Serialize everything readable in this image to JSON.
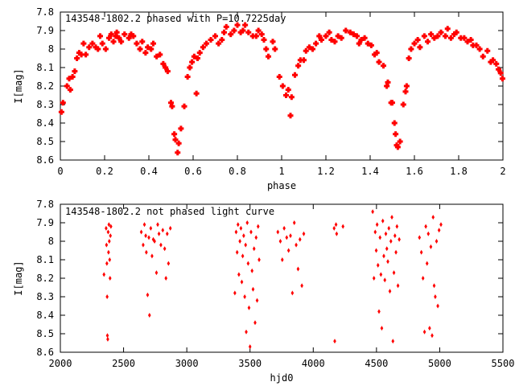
{
  "colors": {
    "points": "#ff0000",
    "axes": "#000000",
    "background": "#ffffff"
  },
  "chart_data": [
    {
      "type": "scatter",
      "title": "143548-1802.2 phased with P=10.7225day",
      "xlabel": "phase",
      "ylabel": "I[mag]",
      "xlim": [
        0,
        2
      ],
      "ylim": [
        7.8,
        8.6
      ],
      "y_inverted": true,
      "grid": false,
      "xticks": [
        0,
        0.2,
        0.4,
        0.6,
        0.8,
        1,
        1.2,
        1.4,
        1.6,
        1.8,
        2
      ],
      "xtick_labels": [
        "0",
        "0.2",
        "0.4",
        "0.6",
        "0.8",
        "1",
        "1.2",
        "1.4",
        "1.6",
        "1.8",
        "2"
      ],
      "yticks": [
        7.8,
        7.9,
        8,
        8.1,
        8.2,
        8.3,
        8.4,
        8.5,
        8.6
      ],
      "ytick_labels": [
        "7.8",
        "7.9",
        "8",
        "8.1",
        "8.2",
        "8.3",
        "8.4",
        "8.5",
        "8.6"
      ],
      "points": [
        [
          0.005,
          8.34
        ],
        [
          0.012,
          8.29
        ],
        [
          0.03,
          8.2
        ],
        [
          0.04,
          8.16
        ],
        [
          0.045,
          8.22
        ],
        [
          0.055,
          8.15
        ],
        [
          0.065,
          8.12
        ],
        [
          0.075,
          8.05
        ],
        [
          0.085,
          8.02
        ],
        [
          0.095,
          8.03
        ],
        [
          0.105,
          7.97
        ],
        [
          0.115,
          8.03
        ],
        [
          0.13,
          7.99
        ],
        [
          0.145,
          7.97
        ],
        [
          0.16,
          7.99
        ],
        [
          0.17,
          8.0
        ],
        [
          0.18,
          7.93
        ],
        [
          0.19,
          7.97
        ],
        [
          0.205,
          8.0
        ],
        [
          0.22,
          7.94
        ],
        [
          0.23,
          7.92
        ],
        [
          0.24,
          7.96
        ],
        [
          0.25,
          7.93
        ],
        [
          0.255,
          7.91
        ],
        [
          0.265,
          7.94
        ],
        [
          0.275,
          7.96
        ],
        [
          0.29,
          7.92
        ],
        [
          0.31,
          7.94
        ],
        [
          0.32,
          7.92
        ],
        [
          0.33,
          7.93
        ],
        [
          0.345,
          7.97
        ],
        [
          0.36,
          8.0
        ],
        [
          0.37,
          7.96
        ],
        [
          0.385,
          8.02
        ],
        [
          0.395,
          7.99
        ],
        [
          0.41,
          8.0
        ],
        [
          0.42,
          7.97
        ],
        [
          0.435,
          8.04
        ],
        [
          0.45,
          8.03
        ],
        [
          0.465,
          8.08
        ],
        [
          0.475,
          8.1
        ],
        [
          0.485,
          8.12
        ],
        [
          0.5,
          8.29
        ],
        [
          0.505,
          8.31
        ],
        [
          0.515,
          8.46
        ],
        [
          0.52,
          8.49
        ],
        [
          0.53,
          8.56
        ],
        [
          0.535,
          8.51
        ],
        [
          0.545,
          8.43
        ],
        [
          0.56,
          8.31
        ],
        [
          0.575,
          8.15
        ],
        [
          0.585,
          8.1
        ],
        [
          0.595,
          8.07
        ],
        [
          0.605,
          8.04
        ],
        [
          0.615,
          8.24
        ],
        [
          0.62,
          8.05
        ],
        [
          0.63,
          8.02
        ],
        [
          0.645,
          7.99
        ],
        [
          0.66,
          7.97
        ],
        [
          0.68,
          7.95
        ],
        [
          0.7,
          7.93
        ],
        [
          0.715,
          7.97
        ],
        [
          0.73,
          7.95
        ],
        [
          0.74,
          7.91
        ],
        [
          0.75,
          7.88
        ],
        [
          0.77,
          7.92
        ],
        [
          0.785,
          7.9
        ],
        [
          0.8,
          7.87
        ],
        [
          0.815,
          7.91
        ],
        [
          0.825,
          7.9
        ],
        [
          0.835,
          7.87
        ],
        [
          0.85,
          7.91
        ],
        [
          0.87,
          7.93
        ],
        [
          0.885,
          7.93
        ],
        [
          0.895,
          7.9
        ],
        [
          0.91,
          7.92
        ],
        [
          0.92,
          7.95
        ],
        [
          0.93,
          8.0
        ],
        [
          0.94,
          8.04
        ],
        [
          0.96,
          7.96
        ],
        [
          0.97,
          8.0
        ],
        [
          0.99,
          8.15
        ],
        [
          1.005,
          8.2
        ],
        [
          1.02,
          8.25
        ],
        [
          1.03,
          8.22
        ],
        [
          1.04,
          8.36
        ],
        [
          1.045,
          8.26
        ],
        [
          1.06,
          8.14
        ],
        [
          1.075,
          8.09
        ],
        [
          1.085,
          8.06
        ],
        [
          1.1,
          8.06
        ],
        [
          1.11,
          8.01
        ],
        [
          1.125,
          7.99
        ],
        [
          1.14,
          8.0
        ],
        [
          1.155,
          7.97
        ],
        [
          1.17,
          7.93
        ],
        [
          1.18,
          7.95
        ],
        [
          1.2,
          7.93
        ],
        [
          1.215,
          7.91
        ],
        [
          1.225,
          7.95
        ],
        [
          1.24,
          7.96
        ],
        [
          1.255,
          7.93
        ],
        [
          1.27,
          7.94
        ],
        [
          1.29,
          7.9
        ],
        [
          1.31,
          7.91
        ],
        [
          1.325,
          7.92
        ],
        [
          1.34,
          7.93
        ],
        [
          1.35,
          7.97
        ],
        [
          1.36,
          7.95
        ],
        [
          1.375,
          7.94
        ],
        [
          1.39,
          7.97
        ],
        [
          1.405,
          7.98
        ],
        [
          1.42,
          8.03
        ],
        [
          1.43,
          8.02
        ],
        [
          1.44,
          8.07
        ],
        [
          1.46,
          8.09
        ],
        [
          1.475,
          8.2
        ],
        [
          1.48,
          8.18
        ],
        [
          1.495,
          8.29
        ],
        [
          1.5,
          8.29
        ],
        [
          1.51,
          8.4
        ],
        [
          1.515,
          8.46
        ],
        [
          1.52,
          8.52
        ],
        [
          1.525,
          8.53
        ],
        [
          1.535,
          8.5
        ],
        [
          1.55,
          8.3
        ],
        [
          1.56,
          8.23
        ],
        [
          1.565,
          8.2
        ],
        [
          1.575,
          8.05
        ],
        [
          1.585,
          8.0
        ],
        [
          1.6,
          7.97
        ],
        [
          1.615,
          7.95
        ],
        [
          1.625,
          7.99
        ],
        [
          1.645,
          7.93
        ],
        [
          1.66,
          7.96
        ],
        [
          1.675,
          7.92
        ],
        [
          1.69,
          7.94
        ],
        [
          1.705,
          7.93
        ],
        [
          1.72,
          7.91
        ],
        [
          1.74,
          7.93
        ],
        [
          1.75,
          7.89
        ],
        [
          1.765,
          7.94
        ],
        [
          1.78,
          7.92
        ],
        [
          1.79,
          7.91
        ],
        [
          1.81,
          7.94
        ],
        [
          1.825,
          7.94
        ],
        [
          1.84,
          7.96
        ],
        [
          1.855,
          7.95
        ],
        [
          1.865,
          7.98
        ],
        [
          1.88,
          7.98
        ],
        [
          1.895,
          8.0
        ],
        [
          1.91,
          8.04
        ],
        [
          1.93,
          8.01
        ],
        [
          1.945,
          8.07
        ],
        [
          1.955,
          8.06
        ],
        [
          1.97,
          8.08
        ],
        [
          1.98,
          8.11
        ],
        [
          1.99,
          8.13
        ],
        [
          1.998,
          8.16
        ]
      ]
    },
    {
      "type": "scatter",
      "title": "143548-1802.2 not phased light curve",
      "xlabel": "hjd0",
      "ylabel": "I[mag]",
      "xlim": [
        2000,
        5500
      ],
      "ylim": [
        7.8,
        8.6
      ],
      "y_inverted": true,
      "grid": false,
      "xticks": [
        2000,
        2500,
        3000,
        3500,
        4000,
        4500,
        5000,
        5500
      ],
      "xtick_labels": [
        "2000",
        "2500",
        "3000",
        "3500",
        "4000",
        "4500",
        "5000",
        "5500"
      ],
      "yticks": [
        7.8,
        7.9,
        8,
        8.1,
        8.2,
        8.3,
        8.4,
        8.5,
        8.6
      ],
      "ytick_labels": [
        "7.8",
        "7.9",
        "8",
        "8.1",
        "8.2",
        "8.3",
        "8.4",
        "8.5",
        "8.6"
      ],
      "points": [
        [
          2345,
          8.18
        ],
        [
          2362,
          7.93
        ],
        [
          2365,
          8.02
        ],
        [
          2368,
          8.12
        ],
        [
          2370,
          8.3
        ],
        [
          2372,
          8.51
        ],
        [
          2375,
          8.53
        ],
        [
          2378,
          7.95
        ],
        [
          2381,
          8.06
        ],
        [
          2384,
          7.91
        ],
        [
          2387,
          8.0
        ],
        [
          2390,
          8.1
        ],
        [
          2393,
          8.2
        ],
        [
          2396,
          7.97
        ],
        [
          2400,
          7.92
        ],
        [
          2640,
          7.95
        ],
        [
          2655,
          8.02
        ],
        [
          2665,
          7.91
        ],
        [
          2675,
          7.97
        ],
        [
          2680,
          8.06
        ],
        [
          2690,
          8.29
        ],
        [
          2700,
          7.98
        ],
        [
          2705,
          8.4
        ],
        [
          2715,
          7.93
        ],
        [
          2725,
          8.08
        ],
        [
          2735,
          7.99
        ],
        [
          2745,
          8.0
        ],
        [
          2760,
          8.17
        ],
        [
          2770,
          7.91
        ],
        [
          2780,
          7.96
        ],
        [
          2795,
          8.02
        ],
        [
          2810,
          7.94
        ],
        [
          2825,
          8.04
        ],
        [
          2835,
          8.2
        ],
        [
          2845,
          7.96
        ],
        [
          2855,
          8.12
        ],
        [
          2870,
          7.93
        ],
        [
          3380,
          8.28
        ],
        [
          3390,
          7.95
        ],
        [
          3398,
          8.06
        ],
        [
          3405,
          7.91
        ],
        [
          3412,
          8.18
        ],
        [
          3420,
          8.0
        ],
        [
          3428,
          7.93
        ],
        [
          3435,
          8.22
        ],
        [
          3442,
          8.08
        ],
        [
          3450,
          7.97
        ],
        [
          3458,
          8.3
        ],
        [
          3465,
          8.02
        ],
        [
          3470,
          8.49
        ],
        [
          3478,
          7.9
        ],
        [
          3485,
          8.12
        ],
        [
          3492,
          8.36
        ],
        [
          3500,
          8.57
        ],
        [
          3508,
          7.95
        ],
        [
          3516,
          8.16
        ],
        [
          3524,
          8.26
        ],
        [
          3532,
          8.04
        ],
        [
          3540,
          8.44
        ],
        [
          3548,
          7.98
        ],
        [
          3556,
          8.32
        ],
        [
          3564,
          7.92
        ],
        [
          3572,
          8.1
        ],
        [
          3720,
          7.95
        ],
        [
          3740,
          8.0
        ],
        [
          3755,
          8.1
        ],
        [
          3770,
          7.93
        ],
        [
          3790,
          7.98
        ],
        [
          3805,
          8.05
        ],
        [
          3820,
          7.97
        ],
        [
          3835,
          8.28
        ],
        [
          3850,
          7.9
        ],
        [
          3865,
          8.02
        ],
        [
          3880,
          8.15
        ],
        [
          3895,
          7.99
        ],
        [
          3910,
          8.24
        ],
        [
          3925,
          7.96
        ],
        [
          4165,
          7.93
        ],
        [
          4170,
          8.54
        ],
        [
          4180,
          7.91
        ],
        [
          4185,
          7.96
        ],
        [
          4235,
          7.92
        ],
        [
          4470,
          7.84
        ],
        [
          4480,
          8.2
        ],
        [
          4490,
          7.95
        ],
        [
          4498,
          8.05
        ],
        [
          4505,
          7.91
        ],
        [
          4512,
          8.13
        ],
        [
          4520,
          8.38
        ],
        [
          4528,
          7.98
        ],
        [
          4535,
          8.18
        ],
        [
          4542,
          8.47
        ],
        [
          4550,
          7.89
        ],
        [
          4558,
          8.08
        ],
        [
          4566,
          8.21
        ],
        [
          4574,
          7.96
        ],
        [
          4582,
          8.04
        ],
        [
          4590,
          8.11
        ],
        [
          4598,
          7.93
        ],
        [
          4606,
          8.27
        ],
        [
          4614,
          8.0
        ],
        [
          4622,
          7.87
        ],
        [
          4630,
          8.54
        ],
        [
          4638,
          8.17
        ],
        [
          4646,
          7.97
        ],
        [
          4654,
          8.06
        ],
        [
          4662,
          7.92
        ],
        [
          4670,
          8.24
        ],
        [
          4680,
          7.99
        ],
        [
          4840,
          7.98
        ],
        [
          4855,
          8.06
        ],
        [
          4868,
          8.2
        ],
        [
          4880,
          8.49
        ],
        [
          4890,
          7.92
        ],
        [
          4900,
          8.12
        ],
        [
          4910,
          7.96
        ],
        [
          4920,
          8.47
        ],
        [
          4930,
          8.03
        ],
        [
          4940,
          8.51
        ],
        [
          4948,
          7.87
        ],
        [
          4956,
          8.24
        ],
        [
          4965,
          8.3
        ],
        [
          4975,
          8.0
        ],
        [
          4985,
          8.35
        ],
        [
          4995,
          7.94
        ],
        [
          5010,
          7.91
        ]
      ]
    }
  ]
}
